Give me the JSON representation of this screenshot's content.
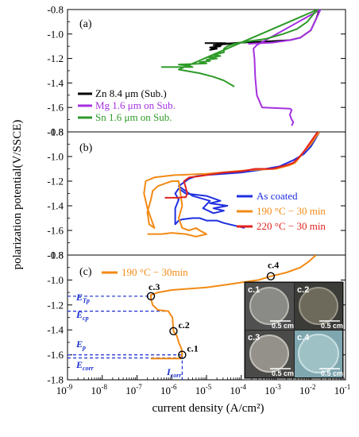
{
  "chart_data": {
    "type": "line",
    "xlabel": "current density (A/cm²)",
    "ylabel": "polarization potential(V/SSCE)",
    "x_scale": "log",
    "xlim_exp": [
      -9,
      -1
    ],
    "x_tick_labels": [
      "10-9",
      "10-8",
      "10-7",
      "10-6",
      "10-5",
      "10-4",
      "10-3",
      "10-2",
      "10-1"
    ],
    "panels": [
      {
        "label": "(a)",
        "ylim": [
          -1.8,
          -0.8
        ],
        "y_ticks": [
          "-0.8",
          "-1.0",
          "-1.2",
          "-1.4",
          "-1.6",
          "-1.8"
        ],
        "legend_position": "bottom-left",
        "series": [
          {
            "name": "Zn 8.4 μm (Sub.)",
            "color": "#000000",
            "points": [
              [
                -5.05,
                -1.075
              ],
              [
                -4.6,
                -1.075
              ],
              [
                -4.5,
                -1.075
              ],
              [
                -4.3,
                -1.08
              ],
              [
                -4.6,
                -1.085
              ],
              [
                -4.8,
                -1.09
              ],
              [
                -4.6,
                -1.1
              ],
              [
                -4.9,
                -1.11
              ],
              [
                -4.7,
                -1.12
              ],
              [
                -4.9,
                -1.13
              ],
              [
                -4.5,
                -1.08
              ],
              [
                -4.0,
                -1.07
              ],
              [
                -3.2,
                -1.06
              ],
              [
                -2.6,
                -1.05
              ],
              [
                -2.3,
                -1.03
              ],
              [
                -2.0,
                -0.97
              ],
              [
                -1.85,
                -0.88
              ],
              [
                -1.75,
                -0.8
              ]
            ]
          },
          {
            "name": "Mg 1.6 μm on Sub.",
            "color": "#a531e0",
            "points": [
              [
                -3.8,
                -1.08
              ],
              [
                -3.1,
                -1.07
              ],
              [
                -2.6,
                -1.05
              ],
              [
                -2.3,
                -1.03
              ],
              [
                -2.0,
                -0.97
              ],
              [
                -1.85,
                -0.88
              ],
              [
                -1.72,
                -0.8
              ],
              [
                -3.55,
                -1.09
              ],
              [
                -3.65,
                -1.12
              ],
              [
                -3.62,
                -1.2
              ],
              [
                -3.6,
                -1.35
              ],
              [
                -3.55,
                -1.5
              ],
              [
                -3.4,
                -1.6
              ],
              [
                -2.6,
                -1.61
              ],
              [
                -2.55,
                -1.62
              ],
              [
                -2.6,
                -1.66
              ],
              [
                -2.55,
                -1.7
              ],
              [
                -2.5,
                -1.72
              ],
              [
                -2.55,
                -1.75
              ]
            ]
          },
          {
            "name": "Sn 1.6 μm on Sub.",
            "color": "#2e9a28",
            "points": [
              [
                -6.3,
                -1.27
              ],
              [
                -5.4,
                -1.27
              ],
              [
                -5.5,
                -1.26
              ],
              [
                -5.8,
                -1.25
              ],
              [
                -5.0,
                -1.24
              ],
              [
                -5.2,
                -1.23
              ],
              [
                -4.9,
                -1.22
              ],
              [
                -5.0,
                -1.21
              ],
              [
                -4.7,
                -1.2
              ],
              [
                -4.95,
                -1.19
              ],
              [
                -4.6,
                -1.18
              ],
              [
                -4.8,
                -1.17
              ],
              [
                -4.5,
                -1.15
              ],
              [
                -4.5,
                -1.12
              ],
              [
                -4.4,
                -1.1
              ],
              [
                -4.2,
                -1.08
              ],
              [
                -3.8,
                -1.06
              ],
              [
                -3.3,
                -1.04
              ],
              [
                -2.8,
                -1.0
              ],
              [
                -2.4,
                -0.96
              ],
              [
                -2.1,
                -0.9
              ],
              [
                -1.9,
                -0.83
              ],
              [
                -1.8,
                -0.8
              ],
              [
                -5.8,
                -1.29
              ],
              [
                -5.2,
                -1.32
              ],
              [
                -4.8,
                -1.35
              ],
              [
                -4.5,
                -1.38
              ],
              [
                -4.2,
                -1.43
              ]
            ]
          }
        ]
      },
      {
        "label": "(b)",
        "ylim": [
          -1.8,
          -0.8
        ],
        "y_ticks": [
          "-0.8",
          "-1.0",
          "-1.2",
          "-1.4",
          "-1.6",
          "-1.8"
        ],
        "legend_position": "right",
        "series": [
          {
            "name": "As coated",
            "color": "#1f2fe0",
            "points": [
              [
                -3.9,
                -1.58
              ],
              [
                -4.2,
                -1.56
              ],
              [
                -4.5,
                -1.54
              ],
              [
                -4.7,
                -1.52
              ],
              [
                -5.0,
                -1.52
              ],
              [
                -5.2,
                -1.5
              ],
              [
                -5.4,
                -1.5
              ],
              [
                -5.7,
                -1.51
              ],
              [
                -5.8,
                -1.52
              ],
              [
                -5.9,
                -1.55
              ],
              [
                -5.9,
                -1.42
              ],
              [
                -5.8,
                -1.35
              ],
              [
                -5.9,
                -1.3
              ],
              [
                -5.8,
                -1.26
              ],
              [
                -5.6,
                -1.3
              ],
              [
                -5.3,
                -1.31
              ],
              [
                -5.0,
                -1.32
              ],
              [
                -4.6,
                -1.36
              ],
              [
                -4.9,
                -1.38
              ],
              [
                -4.4,
                -1.4
              ],
              [
                -4.8,
                -1.42
              ],
              [
                -4.5,
                -1.44
              ],
              [
                -4.8,
                -1.46
              ],
              [
                -5.1,
                -1.42
              ],
              [
                -4.9,
                -1.36
              ],
              [
                -5.4,
                -1.32
              ],
              [
                -5.6,
                -1.28
              ],
              [
                -5.8,
                -1.24
              ],
              [
                -5.7,
                -1.22
              ],
              [
                -5.6,
                -1.2
              ],
              [
                -5.5,
                -1.18
              ],
              [
                -5.3,
                -1.16
              ],
              [
                -5.0,
                -1.15
              ],
              [
                -4.5,
                -1.14
              ],
              [
                -4.0,
                -1.13
              ],
              [
                -3.5,
                -1.11
              ],
              [
                -2.9,
                -1.08
              ],
              [
                -2.5,
                -1.03
              ],
              [
                -2.2,
                -0.98
              ],
              [
                -2.0,
                -0.92
              ],
              [
                -1.85,
                -0.85
              ],
              [
                -1.75,
                -0.8
              ]
            ]
          },
          {
            "name": "190 °C − 30 min",
            "color": "#f28a14",
            "points": [
              [
                -6.7,
                -1.63
              ],
              [
                -6.3,
                -1.63
              ],
              [
                -6.0,
                -1.62
              ],
              [
                -5.6,
                -1.63
              ],
              [
                -5.3,
                -1.65
              ],
              [
                -5.0,
                -1.63
              ],
              [
                -5.2,
                -1.6
              ],
              [
                -5.3,
                -1.58
              ],
              [
                -5.5,
                -1.6
              ],
              [
                -5.7,
                -1.58
              ],
              [
                -5.8,
                -1.5
              ],
              [
                -5.7,
                -1.4
              ],
              [
                -5.75,
                -1.3
              ],
              [
                -5.8,
                -1.2
              ],
              [
                -6.0,
                -1.2
              ],
              [
                -6.2,
                -1.22
              ],
              [
                -6.4,
                -1.24
              ],
              [
                -6.55,
                -1.28
              ],
              [
                -6.6,
                -1.35
              ],
              [
                -6.7,
                -1.45
              ],
              [
                -6.65,
                -1.55
              ],
              [
                -6.5,
                -1.58
              ],
              [
                -6.7,
                -1.42
              ],
              [
                -6.8,
                -1.3
              ],
              [
                -6.75,
                -1.2
              ],
              [
                -6.5,
                -1.17
              ],
              [
                -6.2,
                -1.16
              ],
              [
                -5.9,
                -1.15
              ],
              [
                -5.8,
                -1.15
              ],
              [
                -5.0,
                -1.14
              ],
              [
                -4.6,
                -1.13
              ],
              [
                -4.2,
                -1.12
              ],
              [
                -3.8,
                -1.11
              ],
              [
                -3.0,
                -1.1
              ],
              [
                -2.6,
                -1.07
              ],
              [
                -2.45,
                -1.05
              ],
              [
                -2.3,
                -1.0
              ],
              [
                -2.2,
                -0.96
              ],
              [
                -2.0,
                -0.9
              ],
              [
                -1.85,
                -0.84
              ],
              [
                -1.75,
                -0.8
              ]
            ]
          },
          {
            "name": "220 °C − 30 min",
            "color": "#e2231e",
            "points": [
              [
                -6.2,
                -1.335
              ],
              [
                -5.8,
                -1.335
              ],
              [
                -5.7,
                -1.33
              ],
              [
                -5.6,
                -1.33
              ],
              [
                -5.55,
                -1.3
              ],
              [
                -5.6,
                -1.25
              ],
              [
                -5.65,
                -1.2
              ],
              [
                -5.5,
                -1.17
              ],
              [
                -5.2,
                -1.16
              ],
              [
                -5.0,
                -1.15
              ],
              [
                -4.5,
                -1.13
              ],
              [
                -4.0,
                -1.12
              ],
              [
                -3.6,
                -1.1
              ],
              [
                -3.1,
                -1.1
              ],
              [
                -2.7,
                -1.07
              ],
              [
                -2.5,
                -1.05
              ],
              [
                -2.35,
                -1.01
              ],
              [
                -2.2,
                -0.96
              ],
              [
                -2.05,
                -0.9
              ],
              [
                -1.9,
                -0.84
              ],
              [
                -1.8,
                -0.8
              ]
            ]
          }
        ]
      },
      {
        "label": "(c)",
        "ylim": [
          -1.8,
          -0.8
        ],
        "y_ticks": [
          "-0.8",
          "-1.0",
          "-1.2",
          "-1.4",
          "-1.6",
          "-1.8"
        ],
        "legend_position": "top-left",
        "series": [
          {
            "name": "190 °C − 30min",
            "color": "#f28a14",
            "points": [
              [
                -6.6,
                -1.63
              ],
              [
                -6.2,
                -1.63
              ],
              [
                -5.75,
                -1.63
              ],
              [
                -5.7,
                -1.6
              ],
              [
                -5.72,
                -1.55
              ],
              [
                -5.8,
                -1.5
              ],
              [
                -5.85,
                -1.45
              ],
              [
                -5.95,
                -1.41
              ],
              [
                -5.98,
                -1.3
              ],
              [
                -6.1,
                -1.25
              ],
              [
                -6.4,
                -1.24
              ],
              [
                -6.55,
                -1.2
              ],
              [
                -6.6,
                -1.15
              ],
              [
                -6.6,
                -1.12
              ],
              [
                -6.4,
                -1.1
              ],
              [
                -6.0,
                -1.08
              ],
              [
                -5.5,
                -1.07
              ],
              [
                -5.0,
                -1.06
              ],
              [
                -4.5,
                -1.04
              ],
              [
                -4.0,
                -1.02
              ],
              [
                -3.5,
                -1.0
              ],
              [
                -3.15,
                -0.97
              ],
              [
                -2.7,
                -0.94
              ],
              [
                -2.3,
                -0.9
              ],
              [
                -2.05,
                -0.85
              ],
              [
                -1.85,
                -0.8
              ]
            ]
          }
        ],
        "annotations": [
          {
            "text": "c.1",
            "x": -5.7,
            "y": -1.6
          },
          {
            "text": "c.2",
            "x": -5.95,
            "y": -1.41
          },
          {
            "text": "c.3",
            "x": -6.6,
            "y": -1.13
          },
          {
            "text": "c.4",
            "x": -3.15,
            "y": -0.97
          }
        ],
        "guide_labels": {
          "etp": "ETp",
          "ecp": "Ecp",
          "ep": "Ep",
          "ecorr": "Ecorr",
          "icorr": "Icorr"
        },
        "inset_images": [
          {
            "label": "c.1",
            "scale": "0.5 cm"
          },
          {
            "label": "c.2",
            "scale": "0.5 cm"
          },
          {
            "label": "c.3",
            "scale": "0.5 cm"
          },
          {
            "label": "c.4",
            "scale": "0.5 cm"
          }
        ]
      }
    ]
  }
}
